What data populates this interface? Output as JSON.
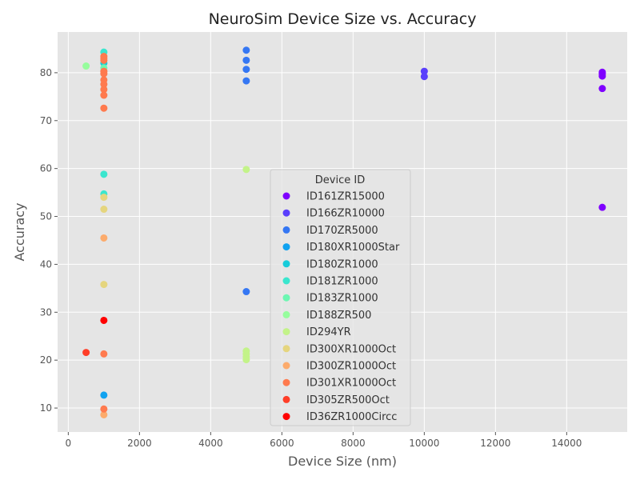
{
  "chart_data": {
    "type": "scatter",
    "title": "NeuroSim Device Size vs. Accuracy",
    "xlabel": "Device Size (nm)",
    "ylabel": "Accuracy",
    "xlim": [
      -300,
      15700
    ],
    "ylim": [
      5,
      88.5
    ],
    "xticks": [
      0,
      2000,
      4000,
      6000,
      8000,
      10000,
      12000,
      14000
    ],
    "yticks": [
      10,
      20,
      30,
      40,
      50,
      60,
      70,
      80
    ],
    "grid": true,
    "legend": {
      "title": "Device ID",
      "position": "center"
    },
    "series": [
      {
        "name": "ID161ZR15000",
        "color": "#7f00ff",
        "points": [
          [
            15000,
            80.1
          ],
          [
            15000,
            79.8
          ],
          [
            15000,
            79.3
          ],
          [
            15000,
            76.7
          ],
          [
            15000,
            51.9
          ]
        ]
      },
      {
        "name": "ID166ZR10000",
        "color": "#5a3ffc",
        "points": [
          [
            10000,
            80.3
          ],
          [
            10000,
            79.2
          ]
        ]
      },
      {
        "name": "ID170ZR5000",
        "color": "#3577f3",
        "points": [
          [
            5000,
            84.7
          ],
          [
            5000,
            82.6
          ],
          [
            5000,
            80.7
          ],
          [
            5000,
            78.3
          ],
          [
            5000,
            34.3
          ]
        ]
      },
      {
        "name": "ID180XR1000Star",
        "color": "#10a2f0",
        "points": [
          [
            1000,
            12.7
          ]
        ]
      },
      {
        "name": "ID180ZR1000",
        "color": "#17ccda",
        "points": [
          [
            1000,
            82.0
          ]
        ]
      },
      {
        "name": "ID181ZR1000",
        "color": "#3ae6ce",
        "points": [
          [
            1000,
            84.3
          ],
          [
            1000,
            58.8
          ],
          [
            1000,
            54.7
          ]
        ]
      },
      {
        "name": "ID183ZR1000",
        "color": "#6cf7b2",
        "points": [
          [
            1000,
            81.0
          ]
        ]
      },
      {
        "name": "ID188ZR500",
        "color": "#96fd9d",
        "points": [
          [
            500,
            81.4
          ]
        ]
      },
      {
        "name": "ID294YR",
        "color": "#c3f389",
        "points": [
          [
            5000,
            59.8
          ],
          [
            5000,
            21.9
          ],
          [
            5000,
            21.3
          ],
          [
            5000,
            20.7
          ],
          [
            5000,
            20.1
          ]
        ]
      },
      {
        "name": "ID300XR1000Oct",
        "color": "#e5d57e",
        "points": [
          [
            1000,
            54.0
          ],
          [
            1000,
            51.5
          ],
          [
            1000,
            35.8
          ]
        ]
      },
      {
        "name": "ID300ZR1000Oct",
        "color": "#fcab6c",
        "points": [
          [
            1000,
            45.5
          ],
          [
            1000,
            8.6
          ]
        ]
      },
      {
        "name": "ID301XR1000Oct",
        "color": "#ff7a4e",
        "points": [
          [
            1000,
            83.4
          ],
          [
            1000,
            83.0
          ],
          [
            1000,
            82.6
          ],
          [
            1000,
            80.3
          ],
          [
            1000,
            79.8
          ],
          [
            1000,
            78.5
          ],
          [
            1000,
            77.6
          ],
          [
            1000,
            76.5
          ],
          [
            1000,
            75.3
          ],
          [
            1000,
            72.6
          ],
          [
            1000,
            21.3
          ],
          [
            1000,
            9.8
          ]
        ]
      },
      {
        "name": "ID305ZR500Oct",
        "color": "#ff3e28",
        "points": [
          [
            500,
            21.6
          ]
        ]
      },
      {
        "name": "ID36ZR1000Circc",
        "color": "#ff0000",
        "points": [
          [
            1000,
            28.3
          ]
        ]
      }
    ]
  }
}
